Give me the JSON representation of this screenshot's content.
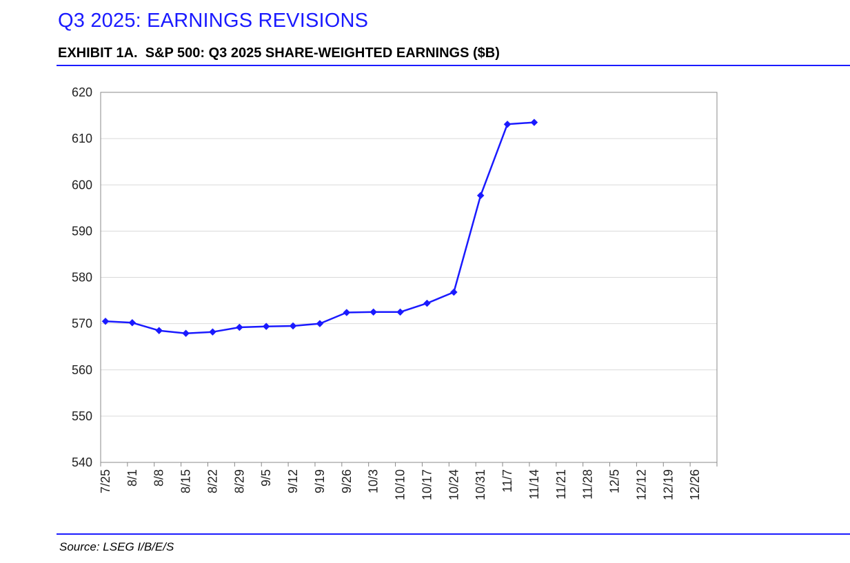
{
  "page": {
    "heading": "Q3 2025: EARNINGS REVISIONS",
    "exhibit_title": "EXHIBIT 1A.  S&P 500: Q3 2025 SHARE-WEIGHTED EARNINGS ($B)",
    "source": "Source: LSEG I/B/E/S"
  },
  "colors": {
    "series": "#1a1aff",
    "accent": "#1a1aff",
    "grid": "#d9d9d9",
    "axis": "#888888"
  },
  "chart_data": {
    "type": "line",
    "title": "EXHIBIT 1A.  S&P 500: Q3 2025 SHARE-WEIGHTED EARNINGS ($B)",
    "xlabel": "",
    "ylabel": "",
    "ylim": [
      540,
      620
    ],
    "yticks": [
      "540",
      "550",
      "560",
      "570",
      "580",
      "590",
      "600",
      "610",
      "620"
    ],
    "grid": true,
    "legend": "none",
    "categories": [
      "7/25",
      "8/1",
      "8/8",
      "8/15",
      "8/22",
      "8/29",
      "9/5",
      "9/12",
      "9/19",
      "9/26",
      "10/3",
      "10/10",
      "10/17",
      "10/24",
      "10/31",
      "11/7",
      "11/14",
      "11/21",
      "11/28",
      "12/5",
      "12/12",
      "12/19",
      "12/26"
    ],
    "series": [
      {
        "name": "S&P 500 Q3 2025 Share-Weighted Earnings ($B)",
        "marker": "diamond",
        "values": [
          570.5,
          570.2,
          568.5,
          567.9,
          568.2,
          569.2,
          569.4,
          569.5,
          570.0,
          572.4,
          572.5,
          572.5,
          574.4,
          576.8,
          597.7,
          613.1,
          613.5,
          null,
          null,
          null,
          null,
          null,
          null
        ]
      }
    ]
  }
}
